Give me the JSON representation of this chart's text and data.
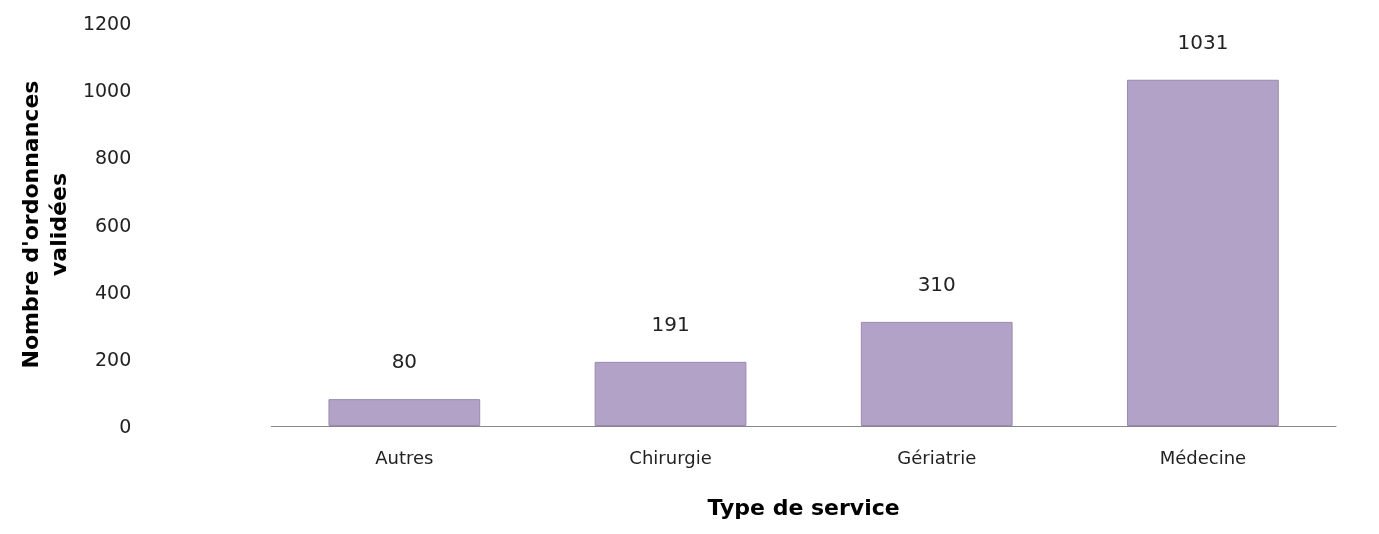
{
  "chart_data": {
    "type": "bar",
    "xlabel": "Type de service",
    "ylabel": "Nombre d'ordonnances validées",
    "categories": [
      "Autres",
      "Chirurgie",
      "Gériatrie",
      "Médecine"
    ],
    "values": [
      80,
      191,
      310,
      1031
    ],
    "color": "#b3a2c7",
    "ylim": [
      0,
      1200
    ],
    "yticks": [
      0,
      200,
      400,
      600,
      800,
      1000,
      1200
    ],
    "grid": false,
    "data_labels": true
  }
}
